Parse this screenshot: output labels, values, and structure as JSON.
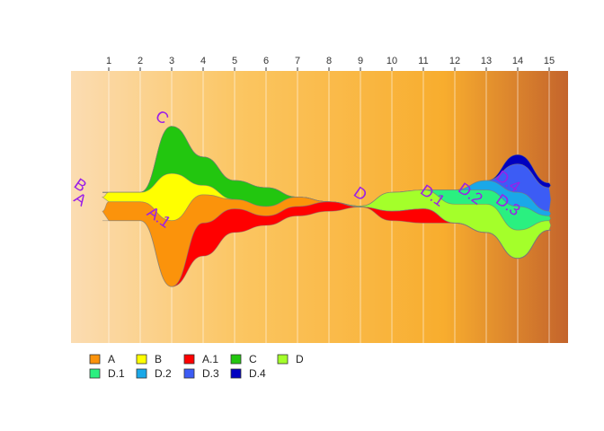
{
  "chart_data": {
    "type": "area",
    "subtype": "streamgraph",
    "title": "",
    "xlabel": "",
    "ylabel": "",
    "x_axis_position": "top",
    "x": [
      1,
      2,
      3,
      4,
      5,
      6,
      7,
      8,
      9,
      10,
      11,
      12,
      13,
      14,
      15
    ],
    "xlim": [
      -0.2,
      15.6
    ],
    "y_axis_visible": false,
    "grid": "vertical",
    "background": "horizontal gradient light peach to dark orange-brown",
    "background_colors": [
      "#fbdcb2",
      "#fbc560",
      "#f8ad2e",
      "#c4642c"
    ],
    "legend_position": "bottom-left",
    "stack_order": [
      "D.4",
      "D.3",
      "D.2",
      "D.1",
      "D",
      "C",
      "B",
      "A",
      "A.1"
    ],
    "series": [
      {
        "name": "A",
        "color": "#fb930b",
        "values": [
          2.0,
          2.0,
          7.0,
          3.0,
          1.0,
          1.0,
          1.0,
          0,
          0,
          0,
          0,
          0,
          0,
          0,
          0
        ]
      },
      {
        "name": "A.1",
        "color": "#ff0000",
        "values": [
          0,
          0,
          0,
          3.5,
          2.5,
          1.0,
          1.0,
          1.0,
          0,
          1.0,
          1.5,
          0,
          0,
          0,
          0
        ]
      },
      {
        "name": "B",
        "color": "#ffff00",
        "values": [
          1.0,
          1.0,
          5.0,
          1.0,
          0,
          0,
          0,
          0,
          0,
          0,
          0,
          0,
          0,
          0,
          0
        ]
      },
      {
        "name": "C",
        "color": "#22c60f",
        "values": [
          0,
          0,
          5.0,
          3.0,
          2.0,
          2.0,
          0,
          0,
          0,
          0,
          0,
          0,
          0,
          0,
          0
        ]
      },
      {
        "name": "D",
        "color": "#a4ff2a",
        "values": [
          0,
          0,
          0,
          0,
          0,
          0,
          0,
          0,
          0.1,
          2.0,
          2.0,
          2.0,
          3.0,
          3.0,
          1.0
        ]
      },
      {
        "name": "D.1",
        "color": "#2af080",
        "values": [
          0,
          0,
          0,
          0,
          0,
          0,
          0,
          0,
          0,
          0,
          0,
          1.5,
          1.5,
          2.5,
          0.5
        ]
      },
      {
        "name": "D.2",
        "color": "#1aa8e8",
        "values": [
          0,
          0,
          0,
          0,
          0,
          0,
          0,
          0,
          0,
          0,
          0,
          0,
          1.0,
          1.5,
          0.5
        ]
      },
      {
        "name": "D.3",
        "color": "#3c5cf5",
        "values": [
          0,
          0,
          0,
          0,
          0,
          0,
          0,
          0,
          0,
          0,
          0,
          0,
          0,
          3.0,
          2.5
        ]
      },
      {
        "name": "D.4",
        "color": "#0000c0",
        "values": [
          0,
          0,
          0,
          0,
          0,
          0,
          0,
          0,
          0,
          0,
          0,
          0,
          0,
          1.0,
          0.5
        ]
      }
    ],
    "labels": [
      {
        "text": "A",
        "x": 0.0,
        "y": 0.3,
        "angle": 35
      },
      {
        "text": "B",
        "x": 0.0,
        "y": 1.8,
        "angle": 35
      },
      {
        "text": "C",
        "x": 2.6,
        "y": 9.0,
        "angle": 35
      },
      {
        "text": "A.1",
        "x": 2.5,
        "y": -1.6,
        "angle": 35
      },
      {
        "text": "D",
        "x": 8.9,
        "y": 0.9,
        "angle": 35
      },
      {
        "text": "D.1",
        "x": 11.2,
        "y": 0.7,
        "angle": 35
      },
      {
        "text": "D.2",
        "x": 12.4,
        "y": 0.9,
        "angle": 35
      },
      {
        "text": "D.3",
        "x": 13.6,
        "y": -0.3,
        "angle": 35
      },
      {
        "text": "D.4",
        "x": 13.6,
        "y": 2.2,
        "angle": 35
      }
    ],
    "legend_rows": [
      [
        "A",
        "B",
        "A.1",
        "C",
        "D"
      ],
      [
        "D.1",
        "D.2",
        "D.3",
        "D.4"
      ]
    ]
  }
}
